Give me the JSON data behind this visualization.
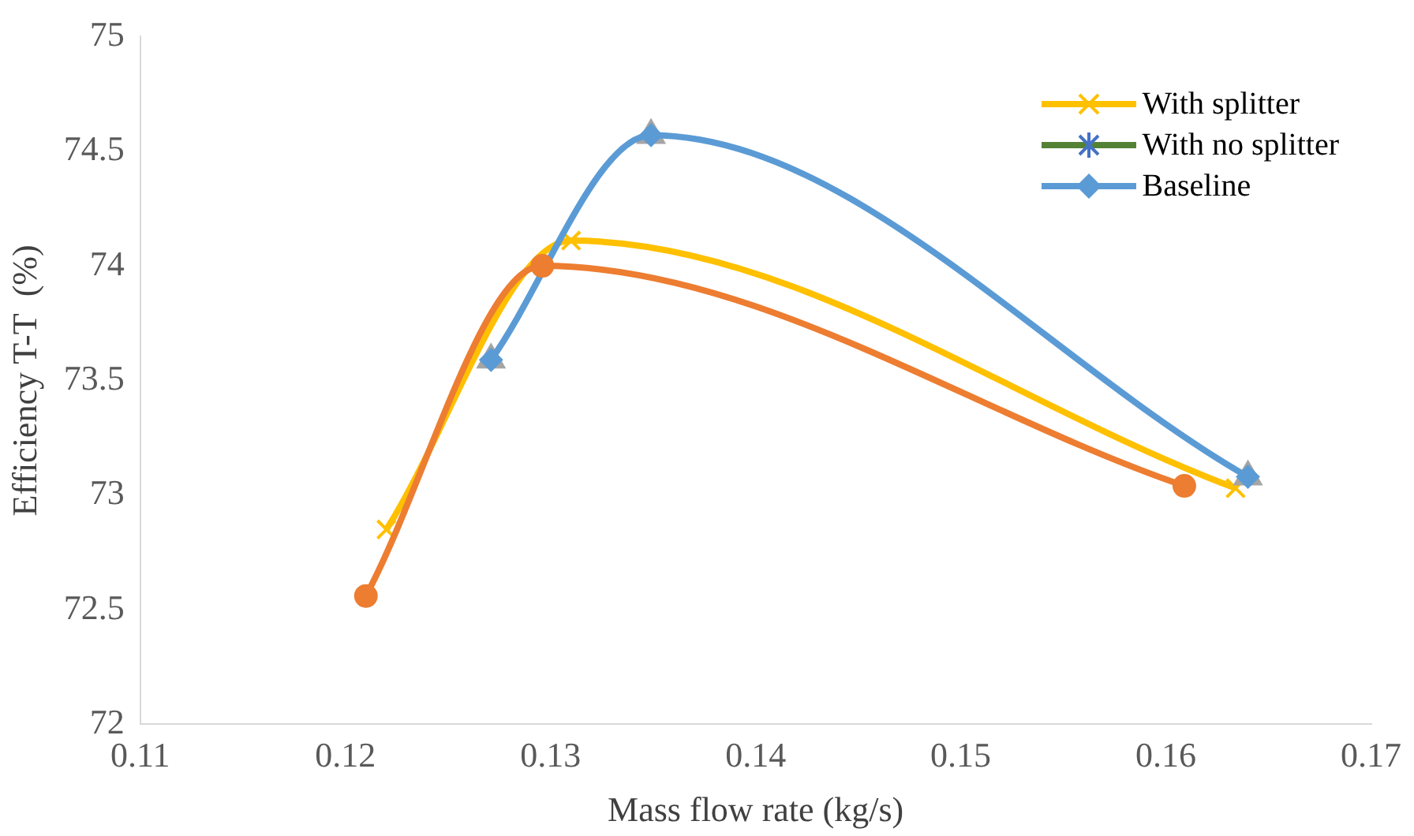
{
  "chart_data": {
    "type": "line",
    "xlabel": "Mass flow rate (kg/s)",
    "ylabel": "Efficiency T-T  (%)",
    "xlim": [
      0.11,
      0.17
    ],
    "xticks": [
      0.11,
      0.12,
      0.13,
      0.14,
      0.15,
      0.16,
      0.17
    ],
    "ylim": [
      72,
      75
    ],
    "yticks": [
      72,
      72.5,
      73,
      73.5,
      74,
      74.5,
      75
    ],
    "grid": false,
    "legend": "top right",
    "series": [
      {
        "name": "With splitter",
        "color": "#ffc000",
        "marker": "cross",
        "x": [
          0.122,
          0.131,
          0.1634
        ],
        "values": [
          72.85,
          74.11,
          73.03
        ]
      },
      {
        "name": "With no splitter",
        "color": "#548235",
        "marker": "star",
        "values": [
          null,
          null,
          null
        ]
      },
      {
        "type": "scatter",
        "color": "#a5a5a5",
        "marker": "triangle",
        "x": [
          0.1271,
          0.1349,
          0.164
        ],
        "values": [
          73.59,
          74.57,
          73.08
        ]
      },
      {
        "name": "Baseline",
        "color": "#5b9bd5",
        "marker": "diamond",
        "x": [
          0.1271,
          0.1349,
          0.164
        ],
        "values": [
          73.59,
          74.57,
          73.08
        ]
      },
      {
        "color": "#ed7d31",
        "marker": "circle",
        "x": [
          0.121,
          0.1296,
          0.1609
        ],
        "values": [
          72.56,
          74.0,
          73.04
        ]
      }
    ]
  }
}
